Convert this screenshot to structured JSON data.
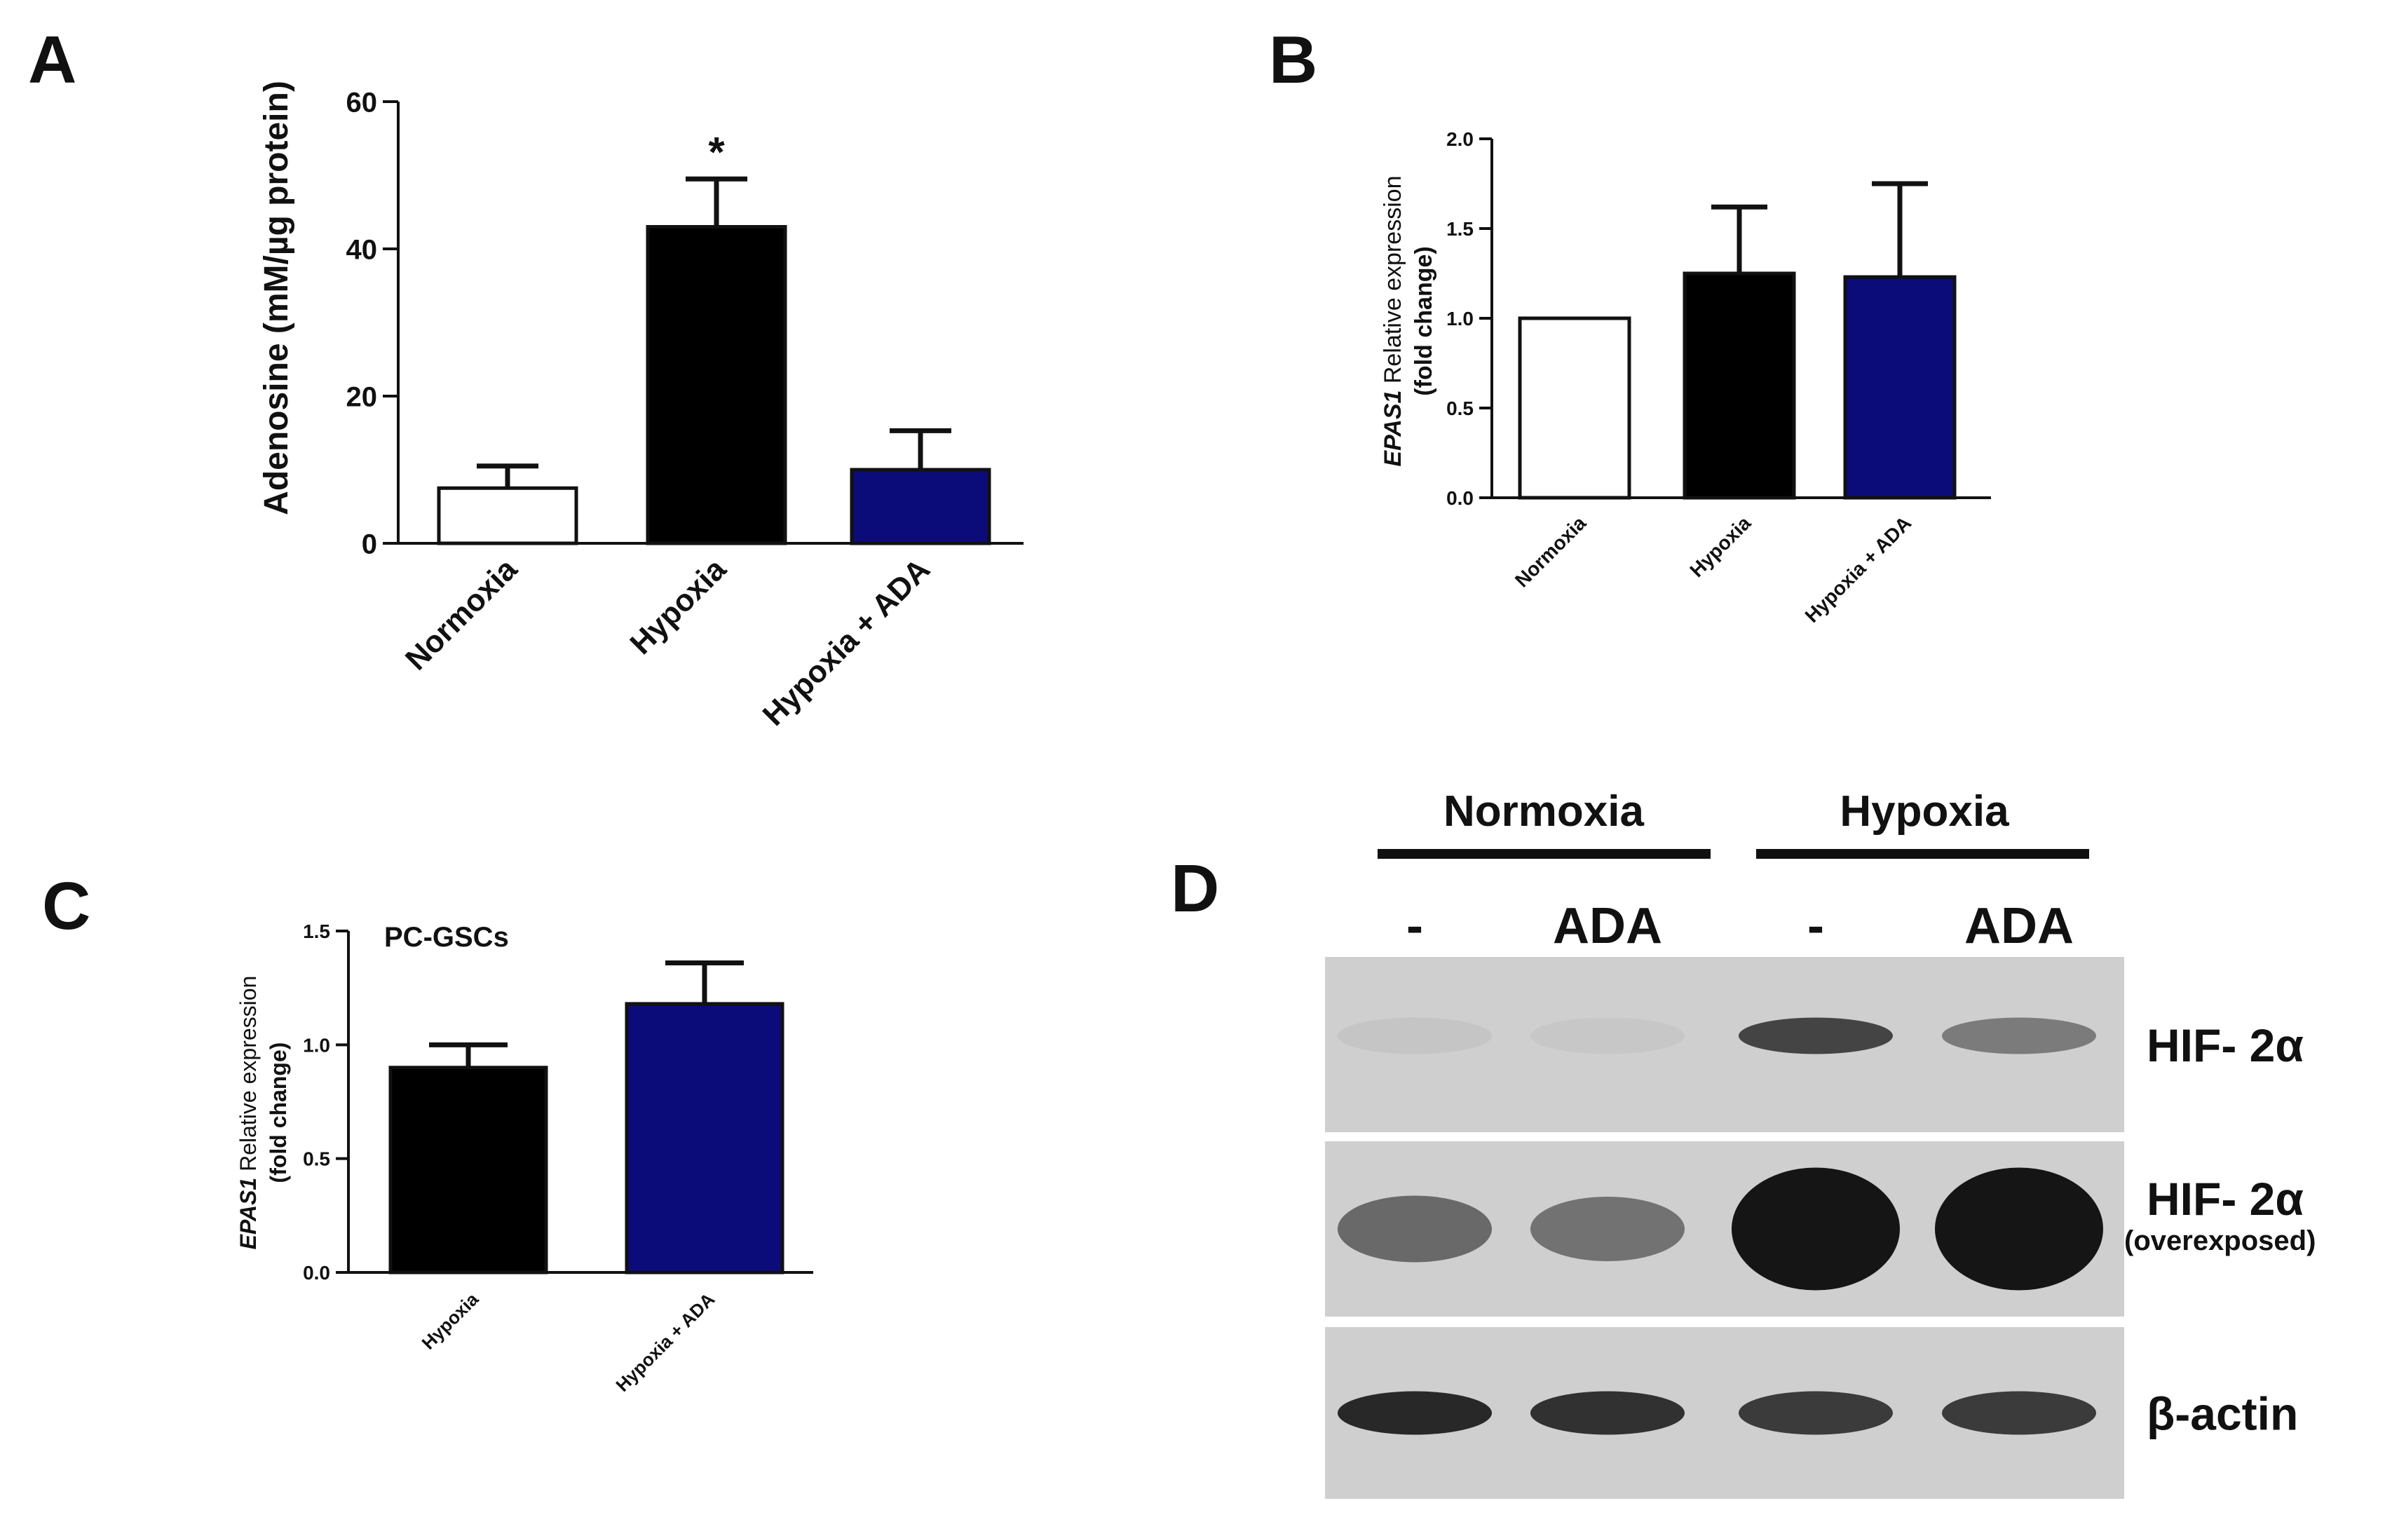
{
  "colors": {
    "normoxia": "#ffffff",
    "hypoxia": "#000000",
    "hypoxia_ada": "#0b0b7a",
    "blot_bg": "#cfcfcf",
    "band": "#151515"
  },
  "chart_data": [
    {
      "panel": "A",
      "type": "bar",
      "categories": [
        "Normoxia",
        "Hypoxia",
        "Hypoxia + ADA"
      ],
      "values": [
        7.5,
        43,
        10
      ],
      "errors": [
        3,
        6.5,
        5.3
      ],
      "annotations": [
        "",
        "*",
        ""
      ],
      "ylabel": "Adenosine (mM/µg protein)",
      "ylim": [
        0,
        60
      ],
      "yticks": [
        "0",
        "20",
        "40",
        "60"
      ],
      "ytick_values": [
        0,
        20,
        40,
        60
      ],
      "grid": false
    },
    {
      "panel": "B",
      "type": "bar",
      "categories": [
        "Normoxia",
        "Hypoxia",
        "Hypoxia + ADA"
      ],
      "values": [
        1.0,
        1.25,
        1.23
      ],
      "errors": [
        0,
        0.37,
        0.52
      ],
      "ylabel_italic": "EPAS1",
      "ylabel_rest": " Relative expression",
      "ylabel_line2": "(fold change)",
      "ylim": [
        0,
        2.0
      ],
      "yticks": [
        "0.0",
        "0.5",
        "1.0",
        "1.5",
        "2.0"
      ],
      "ytick_values": [
        0,
        0.5,
        1.0,
        1.5,
        2.0
      ],
      "grid": false
    },
    {
      "panel": "C",
      "type": "bar",
      "title": "PC-GSCs",
      "categories": [
        "Hypoxia",
        "Hypoxia + ADA"
      ],
      "values": [
        0.9,
        1.18
      ],
      "errors": [
        0.1,
        0.18
      ],
      "ylabel_italic": "EPAS1",
      "ylabel_rest": " Relative expression",
      "ylabel_line2": "(fold change)",
      "ylim": [
        0,
        1.5
      ],
      "yticks": [
        "0.0",
        "0.5",
        "1.0",
        "1.5"
      ],
      "ytick_values": [
        0,
        0.5,
        1.0,
        1.5
      ],
      "grid": false
    }
  ],
  "blot": {
    "panel": "D",
    "groups": [
      "Normoxia",
      "Hypoxia"
    ],
    "lanes": [
      "-",
      "ADA",
      "-",
      "ADA"
    ],
    "rows": [
      {
        "label": "HIF- 2α",
        "sublabel": "",
        "intensities": [
          0.05,
          0.04,
          0.75,
          0.45
        ]
      },
      {
        "label": "HIF- 2α",
        "sublabel": "(overexposed)",
        "intensities": [
          0.55,
          0.5,
          1.0,
          1.0
        ]
      },
      {
        "label": "β-actin",
        "sublabel": "",
        "intensities": [
          0.9,
          0.85,
          0.8,
          0.8
        ]
      }
    ]
  }
}
